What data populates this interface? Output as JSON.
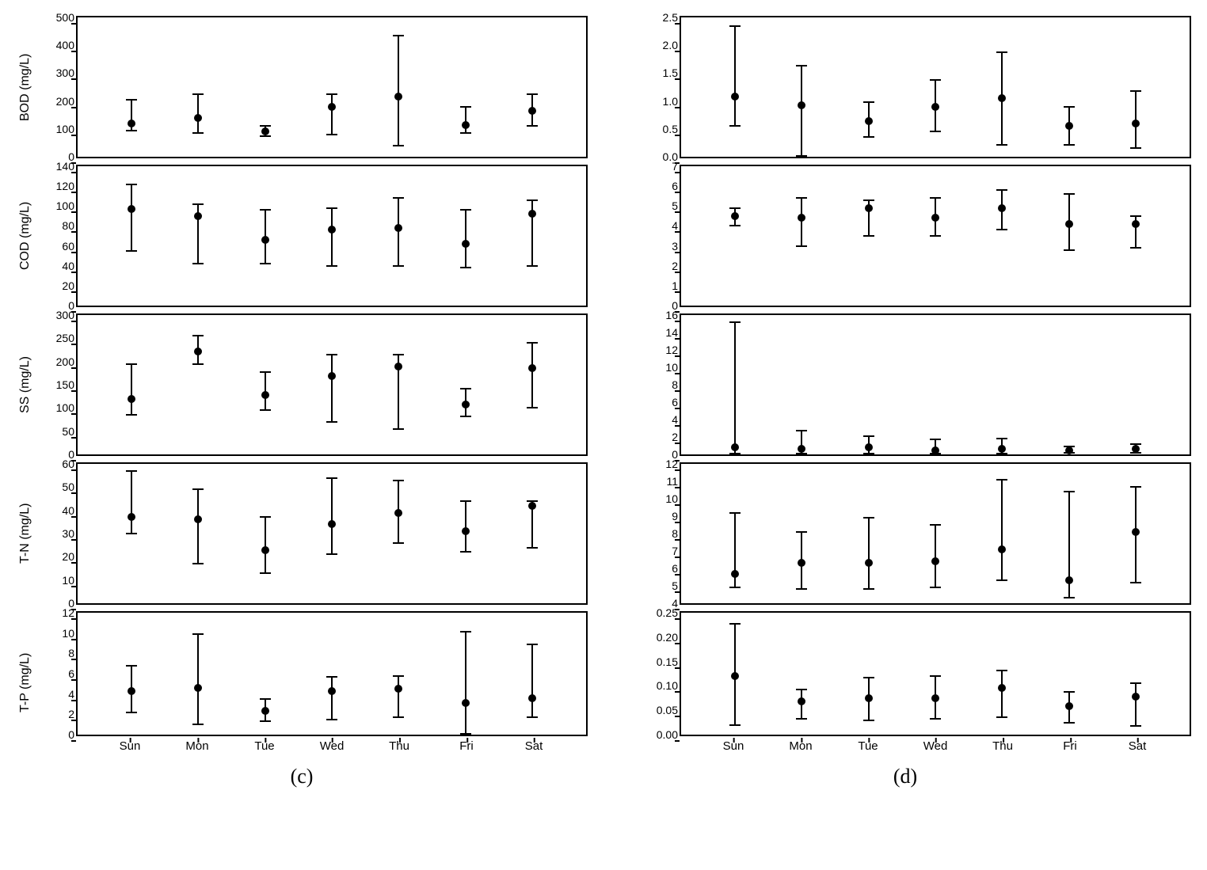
{
  "layout": {
    "columns": [
      "c",
      "d"
    ],
    "rows": [
      "BOD",
      "COD",
      "SS",
      "TN",
      "TP"
    ],
    "categories": [
      "Sun",
      "Mon",
      "Tue",
      "Wed",
      "Thu",
      "Fri",
      "Sat"
    ],
    "background_color": "#ffffff",
    "axis_color": "#000000",
    "point_color": "#000000",
    "marker_size": 10,
    "errorbar_width": 2,
    "cap_width": 14,
    "font_size_tick": 14,
    "font_size_label": 16,
    "font_size_panel": 26
  },
  "panel_labels": {
    "c": "(c)",
    "d": "(d)"
  },
  "ylabels": {
    "BOD": "BOD (mg/L)",
    "COD": "COD (mg/L)",
    "SS": "SS (mg/L)",
    "TN": "T-N (mg/L)",
    "TP": "T-P (mg/L)"
  },
  "subplots": {
    "c": {
      "BOD": {
        "type": "errorbar",
        "ylim": [
          0,
          500
        ],
        "ytick_step": 100,
        "data": [
          {
            "x": "Sun",
            "y": 120,
            "lo": 95,
            "hi": 205
          },
          {
            "x": "Mon",
            "y": 140,
            "lo": 85,
            "hi": 225
          },
          {
            "x": "Tue",
            "y": 90,
            "lo": 75,
            "hi": 110
          },
          {
            "x": "Wed",
            "y": 180,
            "lo": 80,
            "hi": 225
          },
          {
            "x": "Thu",
            "y": 215,
            "lo": 40,
            "hi": 435
          },
          {
            "x": "Fri",
            "y": 115,
            "lo": 85,
            "hi": 180
          },
          {
            "x": "Sat",
            "y": 165,
            "lo": 110,
            "hi": 225
          }
        ]
      },
      "COD": {
        "type": "errorbar",
        "ylim": [
          0,
          140
        ],
        "ytick_step": 20,
        "data": [
          {
            "x": "Sun",
            "y": 97,
            "lo": 55,
            "hi": 122
          },
          {
            "x": "Mon",
            "y": 90,
            "lo": 42,
            "hi": 102
          },
          {
            "x": "Tue",
            "y": 66,
            "lo": 42,
            "hi": 96
          },
          {
            "x": "Wed",
            "y": 76,
            "lo": 40,
            "hi": 98
          },
          {
            "x": "Thu",
            "y": 78,
            "lo": 40,
            "hi": 108
          },
          {
            "x": "Fri",
            "y": 62,
            "lo": 38,
            "hi": 96
          },
          {
            "x": "Sat",
            "y": 92,
            "lo": 40,
            "hi": 106
          }
        ]
      },
      "SS": {
        "type": "errorbar",
        "ylim": [
          0,
          300
        ],
        "ytick_step": 50,
        "data": [
          {
            "x": "Sun",
            "y": 120,
            "lo": 85,
            "hi": 195
          },
          {
            "x": "Mon",
            "y": 222,
            "lo": 195,
            "hi": 255
          },
          {
            "x": "Tue",
            "y": 128,
            "lo": 95,
            "hi": 178
          },
          {
            "x": "Wed",
            "y": 168,
            "lo": 70,
            "hi": 215
          },
          {
            "x": "Thu",
            "y": 190,
            "lo": 55,
            "hi": 215
          },
          {
            "x": "Fri",
            "y": 108,
            "lo": 82,
            "hi": 142
          },
          {
            "x": "Sat",
            "y": 185,
            "lo": 100,
            "hi": 240
          }
        ]
      },
      "TN": {
        "type": "errorbar",
        "ylim": [
          0,
          60
        ],
        "ytick_step": 10,
        "data": [
          {
            "x": "Sun",
            "y": 37,
            "lo": 30,
            "hi": 57
          },
          {
            "x": "Mon",
            "y": 36,
            "lo": 17,
            "hi": 49
          },
          {
            "x": "Tue",
            "y": 23,
            "lo": 13,
            "hi": 37
          },
          {
            "x": "Wed",
            "y": 34,
            "lo": 21,
            "hi": 54
          },
          {
            "x": "Thu",
            "y": 39,
            "lo": 26,
            "hi": 53
          },
          {
            "x": "Fri",
            "y": 31,
            "lo": 22,
            "hi": 44
          },
          {
            "x": "Sat",
            "y": 42,
            "lo": 24,
            "hi": 44
          }
        ]
      },
      "TP": {
        "type": "errorbar",
        "ylim": [
          0,
          12
        ],
        "ytick_step": 2,
        "data": [
          {
            "x": "Sun",
            "y": 4.3,
            "lo": 2.2,
            "hi": 6.8
          },
          {
            "x": "Mon",
            "y": 4.6,
            "lo": 1.0,
            "hi": 9.9
          },
          {
            "x": "Tue",
            "y": 2.3,
            "lo": 1.3,
            "hi": 3.5
          },
          {
            "x": "Wed",
            "y": 4.3,
            "lo": 1.5,
            "hi": 5.7
          },
          {
            "x": "Thu",
            "y": 4.5,
            "lo": 1.7,
            "hi": 5.8
          },
          {
            "x": "Fri",
            "y": 3.1,
            "lo": 0.1,
            "hi": 10.1
          },
          {
            "x": "Sat",
            "y": 3.6,
            "lo": 1.7,
            "hi": 8.9
          }
        ]
      }
    },
    "d": {
      "BOD": {
        "type": "errorbar",
        "ylim": [
          0.0,
          2.5
        ],
        "ytick_step": 0.5,
        "decimals": 1,
        "data": [
          {
            "x": "Sun",
            "y": 1.08,
            "lo": 0.55,
            "hi": 2.35
          },
          {
            "x": "Mon",
            "y": 0.92,
            "lo": 0.02,
            "hi": 1.63
          },
          {
            "x": "Tue",
            "y": 0.64,
            "lo": 0.35,
            "hi": 0.98
          },
          {
            "x": "Wed",
            "y": 0.9,
            "lo": 0.45,
            "hi": 1.38
          },
          {
            "x": "Thu",
            "y": 1.05,
            "lo": 0.22,
            "hi": 1.87
          },
          {
            "x": "Fri",
            "y": 0.55,
            "lo": 0.22,
            "hi": 0.9
          },
          {
            "x": "Sat",
            "y": 0.6,
            "lo": 0.15,
            "hi": 1.18
          }
        ]
      },
      "COD": {
        "type": "errorbar",
        "ylim": [
          0,
          7
        ],
        "ytick_step": 1,
        "data": [
          {
            "x": "Sun",
            "y": 4.5,
            "lo": 4.0,
            "hi": 4.9
          },
          {
            "x": "Mon",
            "y": 4.4,
            "lo": 3.0,
            "hi": 5.4
          },
          {
            "x": "Tue",
            "y": 4.9,
            "lo": 3.5,
            "hi": 5.3
          },
          {
            "x": "Wed",
            "y": 4.4,
            "lo": 3.5,
            "hi": 5.4
          },
          {
            "x": "Thu",
            "y": 4.9,
            "lo": 3.8,
            "hi": 5.8
          },
          {
            "x": "Fri",
            "y": 4.1,
            "lo": 2.8,
            "hi": 5.6
          },
          {
            "x": "Sat",
            "y": 4.1,
            "lo": 2.9,
            "hi": 4.5
          }
        ]
      },
      "SS": {
        "type": "errorbar",
        "ylim": [
          0,
          16
        ],
        "ytick_step": 2,
        "data": [
          {
            "x": "Sun",
            "y": 0.8,
            "lo": 0.1,
            "hi": 15.2
          },
          {
            "x": "Mon",
            "y": 0.6,
            "lo": 0.1,
            "hi": 2.7
          },
          {
            "x": "Tue",
            "y": 0.8,
            "lo": 0.1,
            "hi": 2.1
          },
          {
            "x": "Wed",
            "y": 0.5,
            "lo": 0.1,
            "hi": 1.7
          },
          {
            "x": "Thu",
            "y": 0.6,
            "lo": 0.1,
            "hi": 1.8
          },
          {
            "x": "Fri",
            "y": 0.5,
            "lo": 0.2,
            "hi": 0.9
          },
          {
            "x": "Sat",
            "y": 0.6,
            "lo": 0.2,
            "hi": 1.2
          }
        ]
      },
      "TN": {
        "type": "errorbar",
        "ylim": [
          4,
          12
        ],
        "ytick_step": 1,
        "data": [
          {
            "x": "Sun",
            "y": 5.7,
            "lo": 4.9,
            "hi": 9.2
          },
          {
            "x": "Mon",
            "y": 6.3,
            "lo": 4.8,
            "hi": 8.1
          },
          {
            "x": "Tue",
            "y": 6.3,
            "lo": 4.8,
            "hi": 8.9
          },
          {
            "x": "Wed",
            "y": 6.4,
            "lo": 4.9,
            "hi": 8.5
          },
          {
            "x": "Thu",
            "y": 7.1,
            "lo": 5.3,
            "hi": 11.1
          },
          {
            "x": "Fri",
            "y": 5.3,
            "lo": 4.3,
            "hi": 10.4
          },
          {
            "x": "Sat",
            "y": 8.1,
            "lo": 5.2,
            "hi": 10.7
          }
        ]
      },
      "TP": {
        "type": "errorbar",
        "ylim": [
          0.0,
          0.25
        ],
        "ytick_step": 0.05,
        "decimals": 2,
        "data": [
          {
            "x": "Sun",
            "y": 0.12,
            "lo": 0.02,
            "hi": 0.228
          },
          {
            "x": "Mon",
            "y": 0.068,
            "lo": 0.032,
            "hi": 0.093
          },
          {
            "x": "Tue",
            "y": 0.075,
            "lo": 0.03,
            "hi": 0.117
          },
          {
            "x": "Wed",
            "y": 0.075,
            "lo": 0.032,
            "hi": 0.12
          },
          {
            "x": "Thu",
            "y": 0.095,
            "lo": 0.035,
            "hi": 0.132
          },
          {
            "x": "Fri",
            "y": 0.058,
            "lo": 0.025,
            "hi": 0.088
          },
          {
            "x": "Sat",
            "y": 0.078,
            "lo": 0.018,
            "hi": 0.105
          }
        ]
      }
    }
  }
}
